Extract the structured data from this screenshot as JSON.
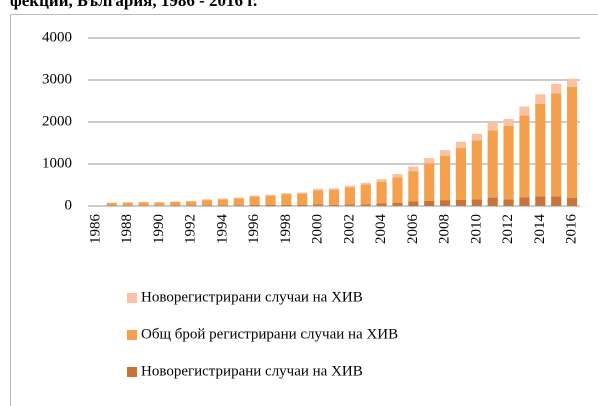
{
  "chart_data": {
    "type": "bar",
    "stacked": true,
    "title": "фекции, България, 1986 - 2016 г.",
    "categories": [
      "1986",
      null,
      "1988",
      null,
      "1990",
      null,
      "1992",
      null,
      "1994",
      null,
      "1996",
      null,
      "1998",
      null,
      "2000",
      null,
      "2002",
      null,
      "2004",
      null,
      "2006",
      null,
      "2008",
      null,
      "2010",
      null,
      "2012",
      null,
      "2014",
      null,
      "2016"
    ],
    "series": [
      {
        "name": "Новорегистрирани случаи на ХИВ",
        "color": "#c8733a",
        "values": [
          2,
          10,
          10,
          10,
          5,
          10,
          10,
          20,
          20,
          20,
          25,
          25,
          30,
          25,
          40,
          30,
          40,
          40,
          60,
          80,
          110,
          120,
          140,
          150,
          160,
          200,
          160,
          210,
          230,
          230,
          190
        ]
      },
      {
        "name": "Общ брой регистрирани случаи на ХИВ",
        "color": "#f5a04c",
        "values": [
          10,
          60,
          70,
          80,
          80,
          90,
          100,
          120,
          140,
          160,
          200,
          220,
          250,
          270,
          330,
          360,
          400,
          470,
          520,
          600,
          720,
          900,
          1050,
          1230,
          1400,
          1600,
          1750,
          1950,
          2200,
          2450,
          2650
        ]
      },
      {
        "name": "Новорегистрирани случаи на ХИВ",
        "color": "#f9c2a4",
        "values": [
          2,
          10,
          10,
          10,
          5,
          10,
          10,
          20,
          20,
          20,
          25,
          25,
          30,
          25,
          40,
          30,
          40,
          40,
          60,
          80,
          110,
          120,
          140,
          150,
          160,
          200,
          160,
          210,
          230,
          230,
          190
        ]
      }
    ],
    "ylim": [
      0,
      4000
    ],
    "yticks": [
      0,
      1000,
      2000,
      3000,
      4000
    ],
    "grid": true,
    "legend": "bottom"
  }
}
